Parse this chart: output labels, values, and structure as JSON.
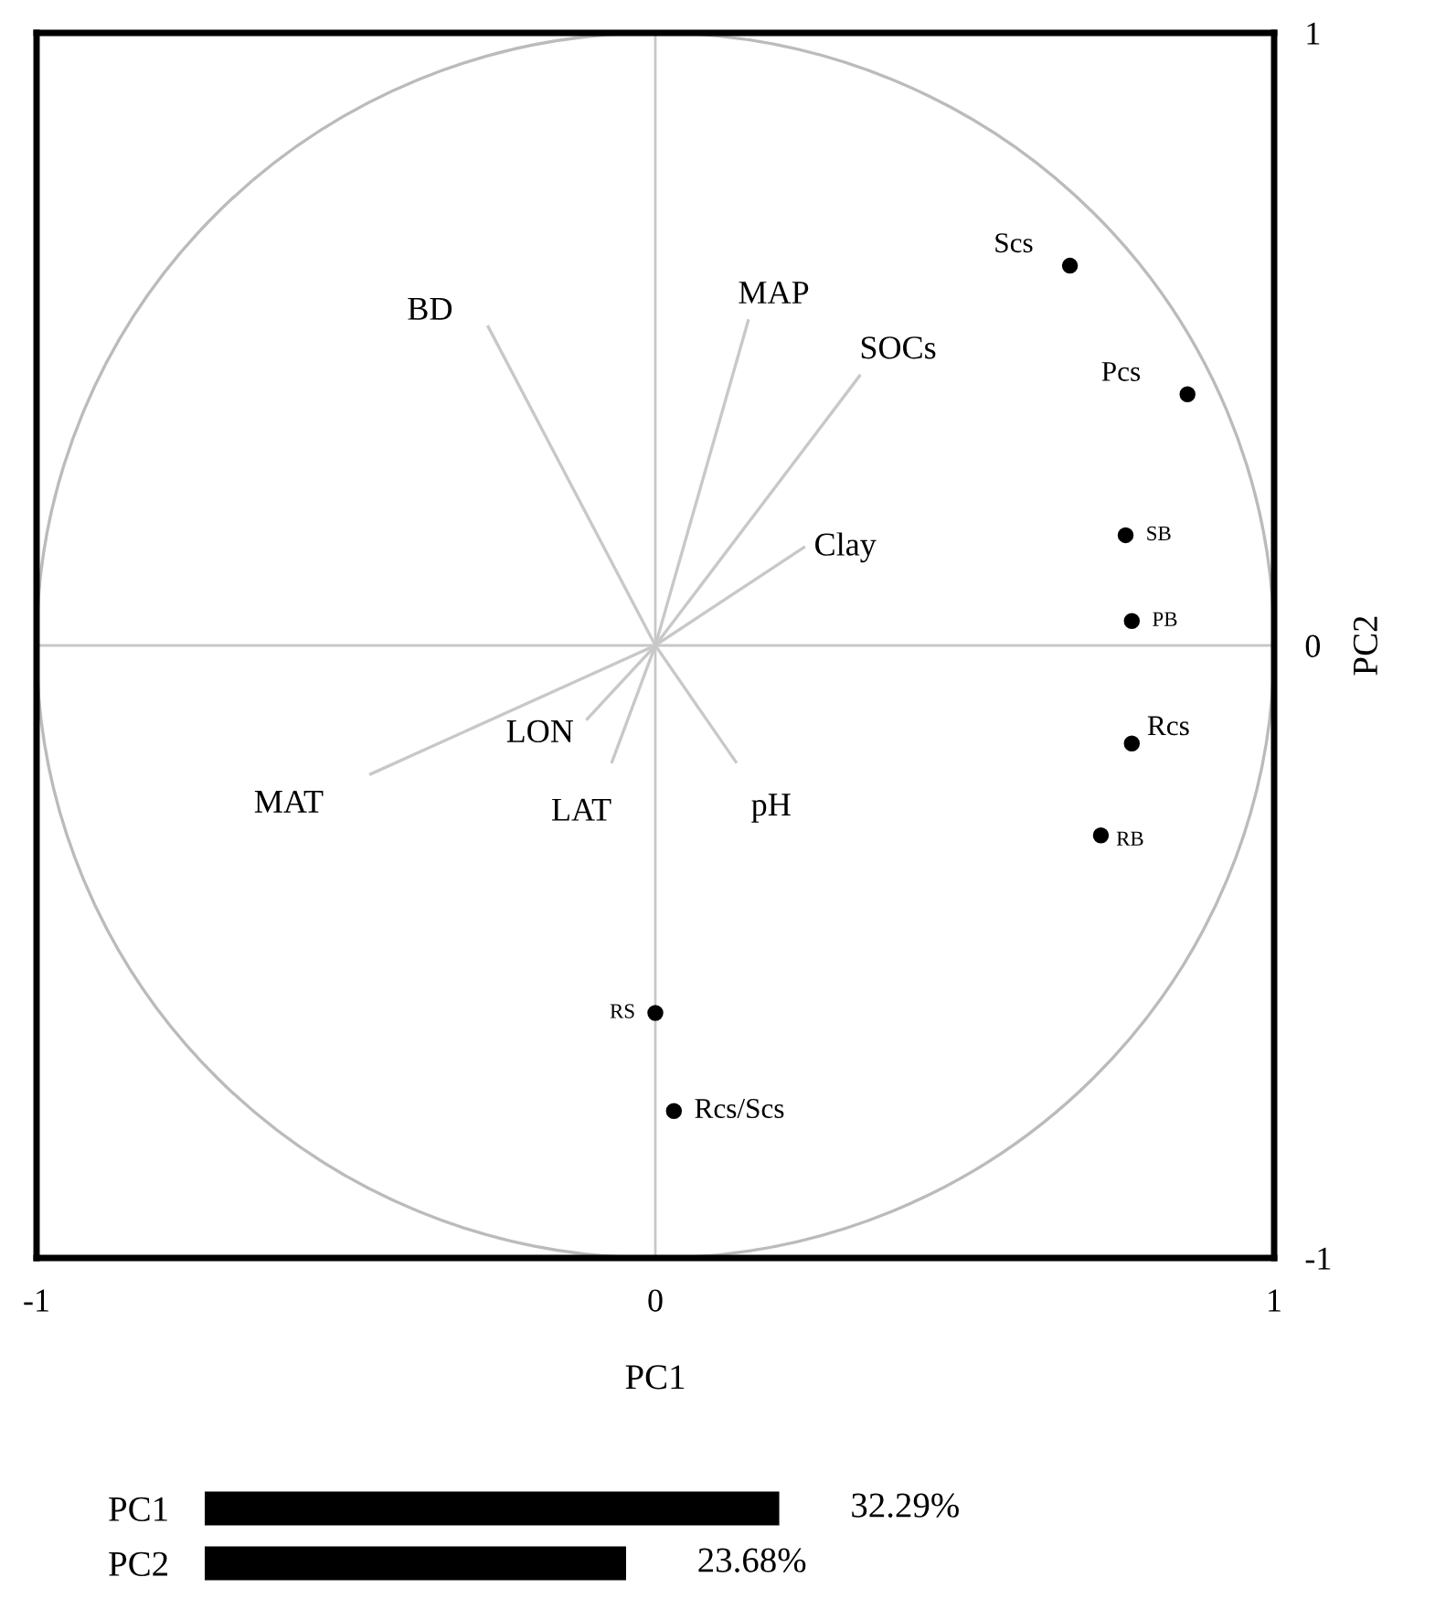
{
  "chart_data": [
    {
      "type": "scatter",
      "xlabel": "PC1",
      "ylabel": "PC2",
      "xlim": [
        -1,
        1
      ],
      "ylim": [
        -1,
        1
      ],
      "xticks": [
        -1,
        0,
        1
      ],
      "yticks": [
        -1,
        0,
        1
      ],
      "grid": true,
      "legend": false,
      "series": [
        {
          "type": "scatter",
          "color": "#000000",
          "marker": "circle",
          "x": [
            0.67,
            0.86,
            0.76,
            0.77,
            0.77,
            0.72,
            0.0,
            0.03
          ],
          "values": [
            0.62,
            0.41,
            0.18,
            0.04,
            -0.16,
            -0.31,
            -0.6,
            -0.76
          ],
          "value_labels": [
            "Scs",
            "Pcs",
            "SB",
            "PB",
            "Rcs",
            "RB",
            "RS",
            "Rcs/Scs"
          ]
        },
        {
          "type": "line",
          "name": "BD",
          "color": "#c8c8c8",
          "x": [
            0,
            -0.27
          ],
          "values": [
            0,
            0.52
          ]
        },
        {
          "type": "line",
          "name": "MAP",
          "color": "#c8c8c8",
          "x": [
            0,
            0.15
          ],
          "values": [
            0,
            0.53
          ]
        },
        {
          "type": "line",
          "name": "SOCs",
          "color": "#c8c8c8",
          "x": [
            0,
            0.33
          ],
          "values": [
            0,
            0.44
          ]
        },
        {
          "type": "line",
          "name": "Clay",
          "color": "#c8c8c8",
          "x": [
            0,
            0.24
          ],
          "values": [
            0,
            0.16
          ]
        },
        {
          "type": "line",
          "name": "MAT",
          "color": "#c8c8c8",
          "x": [
            0,
            -0.46
          ],
          "values": [
            0,
            -0.21
          ]
        },
        {
          "type": "line",
          "name": "LON",
          "color": "#c8c8c8",
          "x": [
            0,
            -0.11
          ],
          "values": [
            0,
            -0.12
          ]
        },
        {
          "type": "line",
          "name": "LAT",
          "color": "#c8c8c8",
          "x": [
            0,
            -0.07
          ],
          "values": [
            0,
            -0.19
          ]
        },
        {
          "type": "line",
          "name": "pH",
          "color": "#c8c8c8",
          "x": [
            0,
            0.13
          ],
          "values": [
            0,
            -0.19
          ]
        }
      ]
    },
    {
      "type": "bar",
      "orientation": "horizontal",
      "categories": [
        "PC1",
        "PC2"
      ],
      "values": [
        32.29,
        23.68
      ],
      "color": "#000000",
      "value_labels": [
        "32.29%",
        "23.68%"
      ]
    }
  ]
}
